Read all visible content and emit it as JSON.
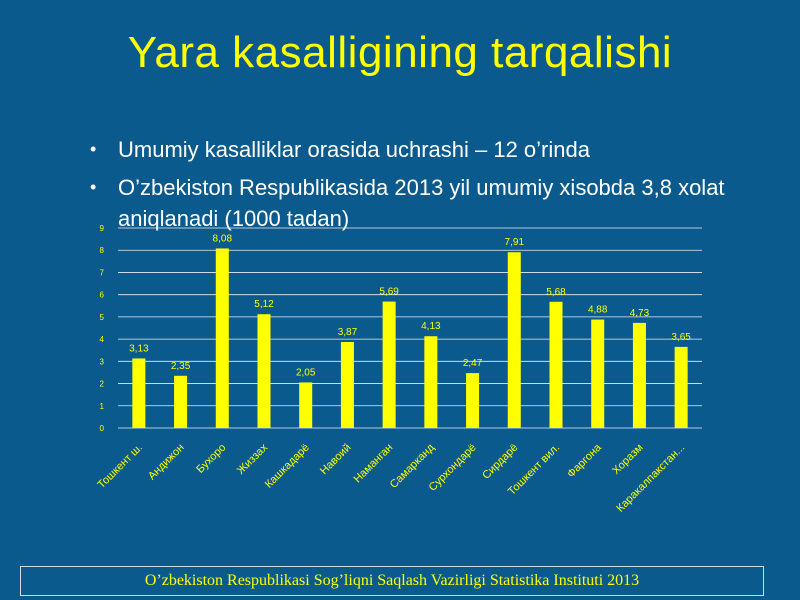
{
  "slide": {
    "title": "Yara kasalligining tarqalishi",
    "bullets": [
      "Umumiy kasalliklar orasida uchrashi – 12 o’rinda",
      "O’zbekiston Respublikasida 2013 yil umumiy xisobda 3,8 xolat aniqlanadi (1000 tadan)"
    ],
    "footer": "O’zbekiston Respublikasi Sog’liqni Saqlash Vazirligi Statistika Instituti 2013"
  },
  "colors": {
    "background": "#0b5a8e",
    "title": "#ffff00",
    "bar": "#ffff00",
    "grid": "#e8eef4"
  },
  "chart_data": {
    "type": "bar",
    "categories": [
      "Тошкент ш.",
      "Андижон",
      "Бухоро",
      "Жиззах",
      "Кашкадарё",
      "Навоий",
      "Наманган",
      "Самарканд",
      "Сурхондарё",
      "Сирдарё",
      "Тошкент вил.",
      "Фаргона",
      "Хоразм",
      "Каракалпакстан..."
    ],
    "values": [
      3.13,
      2.35,
      8.08,
      5.12,
      2.05,
      3.87,
      5.69,
      4.13,
      2.47,
      7.91,
      5.68,
      4.88,
      4.73,
      3.65
    ],
    "value_labels": [
      "3,13",
      "2,35",
      "8,08",
      "5,12",
      "2,05",
      "3,87",
      "5,69",
      "4,13",
      "2,47",
      "7,91",
      "5,68",
      "4,88",
      "4,73",
      "3,65"
    ],
    "y_ticks": [
      "0",
      "1",
      "2",
      "3",
      "4",
      "5",
      "6",
      "7",
      "8",
      "9"
    ],
    "ylim": [
      0,
      9
    ],
    "grid": true,
    "legend": "none"
  }
}
